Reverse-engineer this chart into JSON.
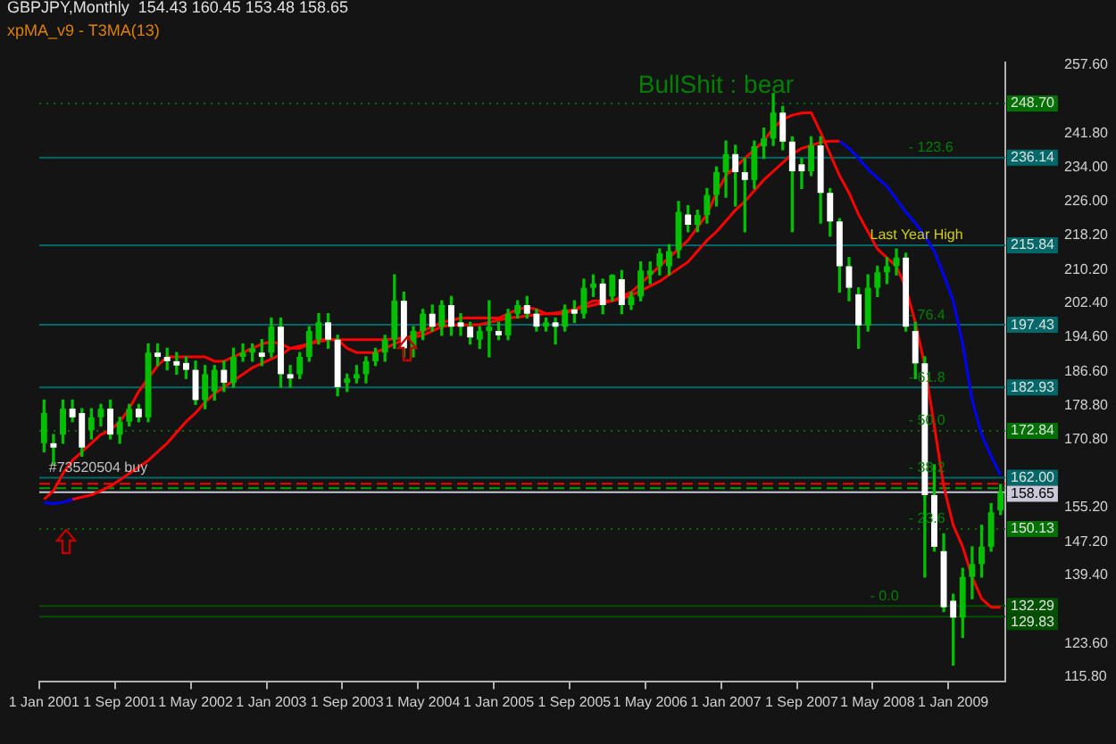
{
  "chart_data": {
    "type": "candlestick",
    "title": "GBPJPY,Monthly  154.43 160.45 153.48 158.65",
    "colors": [
      "#00c000",
      "#ffffff",
      "#00c000",
      "#ffffff",
      "#ffffff",
      "#00c000",
      "#00c000",
      "#ffffff",
      "#00c000",
      "#00c000",
      "#ffffff",
      "#00c000",
      "#ffffff",
      "#ffffff",
      "#ffffff",
      "#ffffff",
      "#ffffff",
      "#00c000",
      "#00c000",
      "#ffffff",
      "#00c000",
      "#00c000",
      "#00c000",
      "#ffffff",
      "#00c000",
      "#ffffff",
      "#ffffff",
      "#00c000",
      "#00c000",
      "#00c000",
      "#ffffff",
      "#ffffff",
      "#00c000",
      "#00c000",
      "#00c000",
      "#00c000",
      "#00c000",
      "#00c000",
      "#ffffff",
      "#00c000",
      "#00c000",
      "#ffffff",
      "#00c000",
      "#ffffff",
      "#ffffff",
      "#ffffff",
      "#00c000",
      "#00c000",
      "#ffffff",
      "#00c000",
      "#00c000",
      "#ffffff",
      "#ffffff",
      "#00c000",
      "#ffffff",
      "#00c000",
      "#ffffff",
      "#00c000",
      "#00c000",
      "#ffffff",
      "#00c000",
      "#ffffff",
      "#00c000",
      "#00c000",
      "#00c000",
      "#00c000",
      "#00c000",
      "#00c000",
      "#ffffff",
      "#00c000",
      "#00c000",
      "#00c000",
      "#00c000",
      "#ffffff",
      "#ffffff",
      "#00c000",
      "#00c000",
      "#00c000",
      "#ffffff",
      "#ffffff",
      "#ffffff",
      "#00c000",
      "#ffffff",
      "#ffffff",
      "#ffffff",
      "#ffffff",
      "#ffffff",
      "#00c000",
      "#00c000",
      "#00c000",
      "#00c000",
      "#ffffff",
      "#ffffff",
      "#ffffff",
      "#ffffff",
      "#ffffff",
      "#ffffff",
      "#00c000",
      "#00c000",
      "#00c000",
      "#00c000",
      "#00c000"
    ],
    "categories": [
      "1 Jan 2001",
      null,
      null,
      null,
      null,
      null,
      null,
      null,
      "1 Sep 2001",
      null,
      null,
      null,
      null,
      null,
      null,
      null,
      "1 May 2002",
      null,
      null,
      null,
      null,
      null,
      null,
      null,
      "1 Jan 2003",
      null,
      null,
      null,
      null,
      null,
      null,
      null,
      "1 Sep 2003",
      null,
      null,
      null,
      null,
      null,
      null,
      null,
      "1 May 2004",
      null,
      null,
      null,
      null,
      null,
      null,
      null,
      "1 Jan 2005",
      null,
      null,
      null,
      null,
      null,
      null,
      null,
      "1 Sep 2005",
      null,
      null,
      null,
      null,
      null,
      null,
      null,
      "1 May 2006",
      null,
      null,
      null,
      null,
      null,
      null,
      null,
      "1 Jan 2007",
      null,
      null,
      null,
      null,
      null,
      null,
      null,
      "1 Sep 2007",
      null,
      null,
      null,
      null,
      null,
      null,
      null,
      "1 May 2008",
      null,
      null,
      null,
      null,
      null,
      null,
      null,
      "1 Jan 2009",
      null,
      null,
      null,
      null,
      null
    ],
    "ohlc": [
      [
        170,
        180,
        168,
        177
      ],
      [
        170,
        172,
        165,
        169
      ],
      [
        172,
        180,
        170,
        178
      ],
      [
        178,
        180,
        175,
        176
      ],
      [
        177,
        178,
        167,
        169
      ],
      [
        173,
        178,
        171,
        176
      ],
      [
        176,
        179,
        174,
        178
      ],
      [
        178,
        180,
        171,
        172
      ],
      [
        172,
        176,
        170,
        175
      ],
      [
        175,
        179,
        174,
        178
      ],
      [
        178,
        179,
        175,
        176
      ],
      [
        176,
        193,
        175,
        191
      ],
      [
        191,
        193,
        188,
        190
      ],
      [
        190,
        192,
        187,
        189
      ],
      [
        189,
        191,
        186,
        188
      ],
      [
        188.6,
        190,
        185,
        187
      ],
      [
        187,
        189,
        179,
        180
      ],
      [
        180,
        188,
        178,
        186
      ],
      [
        182,
        188,
        180,
        187
      ],
      [
        187,
        189,
        182,
        184
      ],
      [
        184,
        192,
        183,
        190
      ],
      [
        190,
        193,
        189,
        191
      ],
      [
        191,
        193,
        189,
        192
      ],
      [
        191,
        194,
        188,
        190
      ],
      [
        191,
        199,
        190,
        197
      ],
      [
        197,
        199,
        183,
        186
      ],
      [
        186,
        188,
        183,
        185
      ],
      [
        186,
        191,
        185,
        190
      ],
      [
        190,
        197,
        189,
        196
      ],
      [
        194,
        200,
        193,
        198
      ],
      [
        198,
        200,
        192,
        194
      ],
      [
        194,
        195,
        181,
        183
      ],
      [
        184,
        186,
        182,
        185
      ],
      [
        185,
        188,
        184,
        186
      ],
      [
        186,
        190,
        184,
        189
      ],
      [
        189,
        192,
        188,
        191
      ],
      [
        191,
        195,
        189,
        194
      ],
      [
        194,
        209,
        192,
        203
      ],
      [
        203,
        205,
        190,
        192
      ],
      [
        192,
        197,
        190,
        196
      ],
      [
        196,
        201,
        194,
        200
      ],
      [
        200,
        202,
        196,
        197
      ],
      [
        197,
        203,
        195,
        202
      ],
      [
        202,
        204,
        195,
        197
      ],
      [
        198,
        200,
        195,
        197
      ],
      [
        197,
        198,
        193,
        194.5
      ],
      [
        194,
        197,
        192,
        196
      ],
      [
        196,
        203,
        190,
        197
      ],
      [
        196,
        198,
        194,
        195
      ],
      [
        195,
        201,
        194,
        200
      ],
      [
        200,
        203,
        199,
        202
      ],
      [
        202,
        204,
        199,
        200
      ],
      [
        200,
        201,
        196,
        197
      ],
      [
        197,
        199,
        196,
        198
      ],
      [
        198,
        199,
        193,
        197
      ],
      [
        197,
        202,
        196,
        201
      ],
      [
        201,
        203,
        198,
        200
      ],
      [
        200,
        208,
        199,
        206
      ],
      [
        206,
        209,
        204,
        207
      ],
      [
        207,
        208,
        200,
        202
      ],
      [
        204,
        209,
        203,
        209
      ],
      [
        208,
        210,
        200,
        202
      ],
      [
        202,
        205,
        201,
        204
      ],
      [
        204,
        212,
        203,
        210
      ],
      [
        209,
        212,
        207,
        210
      ],
      [
        211,
        215,
        209,
        214
      ],
      [
        211,
        216,
        209,
        214.5
      ],
      [
        214.7,
        226,
        213,
        223.6
      ],
      [
        223,
        225,
        219,
        220.6
      ],
      [
        220.6,
        224,
        219,
        222.9
      ],
      [
        222.9,
        229,
        221,
        227.5
      ],
      [
        227.5,
        234,
        225,
        232.8
      ],
      [
        232.8,
        240,
        227,
        237
      ],
      [
        237,
        239,
        225,
        232.8
      ],
      [
        232.8,
        236,
        219,
        231
      ],
      [
        231,
        240,
        229,
        238.8
      ],
      [
        238.8,
        243,
        236,
        240.6
      ],
      [
        240.6,
        251,
        239,
        246.6
      ],
      [
        246.6,
        248,
        238,
        239.9
      ],
      [
        239.9,
        241,
        219,
        233
      ],
      [
        234.6,
        236,
        229,
        233
      ],
      [
        233,
        241,
        232,
        239
      ],
      [
        239,
        241,
        221,
        228
      ],
      [
        228,
        229,
        218,
        221.4
      ],
      [
        221.4,
        222,
        205,
        211
      ],
      [
        211,
        213,
        203,
        206
      ],
      [
        204.5,
        206,
        192,
        197.3
      ],
      [
        197.3,
        209,
        196,
        206
      ],
      [
        206,
        211,
        204,
        209.6
      ],
      [
        209.6,
        213,
        207,
        211
      ],
      [
        211,
        215,
        209,
        213
      ],
      [
        213,
        214,
        196,
        197
      ],
      [
        196,
        198,
        185,
        188.5
      ],
      [
        188.5,
        190,
        139,
        158
      ],
      [
        158,
        165,
        145,
        146
      ],
      [
        145,
        149,
        131,
        132
      ],
      [
        133.5,
        135,
        118.6,
        129.6
      ],
      [
        129.6,
        141,
        125,
        139
      ],
      [
        139,
        146,
        134,
        142
      ],
      [
        142,
        151,
        139,
        146
      ],
      [
        146,
        156,
        145,
        154
      ],
      [
        154.43,
        160.45,
        153.48,
        158.65
      ]
    ],
    "series": [
      {
        "type": "line",
        "color": "#ff0000",
        "values": [
          157,
          159,
          163,
          166,
          168,
          170,
          172,
          173,
          175,
          178,
          182,
          185,
          188,
          190,
          190,
          190,
          190,
          190,
          189,
          189,
          190,
          191,
          192,
          193,
          193.5,
          193,
          192,
          192,
          193,
          194,
          194,
          194,
          192,
          191,
          191,
          191,
          192,
          193,
          194,
          195,
          196,
          197,
          198,
          198.5,
          199,
          199,
          199,
          199,
          199,
          200,
          201,
          201.5,
          201,
          200,
          200,
          200,
          201,
          202,
          203,
          203,
          203,
          204,
          205,
          207,
          209,
          211,
          213,
          215,
          217,
          220,
          223,
          228,
          232,
          234,
          236,
          238,
          240,
          243,
          245,
          246,
          246.5,
          246.6,
          242,
          237,
          232,
          228,
          223,
          219,
          215,
          213,
          211,
          206,
          198,
          188,
          174,
          160,
          151,
          146,
          139,
          134,
          132,
          132
        ]
      },
      {
        "type": "line",
        "color": "#ff0000",
        "values": [
          null,
          null,
          null,
          157,
          157.5,
          158,
          159,
          160,
          161.5,
          163,
          164.5,
          166,
          168,
          170,
          172.5,
          175,
          177,
          179.5,
          181.5,
          183,
          184.5,
          186,
          187.5,
          188.5,
          189.5,
          190.5,
          192,
          192.5,
          193,
          193.5,
          194,
          194,
          194,
          194,
          194,
          194,
          194,
          194.2,
          194.4,
          194.5,
          195,
          196,
          197,
          197.4,
          197.4,
          197.4,
          197.5,
          198,
          198.5,
          199,
          199.2,
          199.5,
          199.8,
          200,
          200.2,
          200.5,
          201,
          201.5,
          202,
          202.5,
          203,
          203.5,
          204.3,
          205.3,
          206.4,
          207.5,
          209,
          210.5,
          212,
          214.5,
          217,
          219,
          221.5,
          224,
          226,
          228.5,
          231,
          233,
          235,
          237,
          238.3,
          239,
          239.7,
          240,
          240,
          null,
          null,
          null,
          null,
          null,
          null,
          null,
          null,
          null,
          null,
          null,
          null,
          null,
          null,
          null,
          null,
          null
        ]
      },
      {
        "type": "line",
        "color": "#0000ff",
        "values": [
          156.2,
          156,
          156.3,
          157,
          null,
          null,
          null,
          null,
          null,
          null,
          null,
          null,
          null,
          null,
          null,
          null,
          null,
          null,
          null,
          null,
          null,
          null,
          null,
          null,
          null,
          null,
          null,
          null,
          null,
          null,
          null,
          null,
          null,
          null,
          null,
          null,
          null,
          null,
          null,
          null,
          null,
          null,
          null,
          null,
          null,
          null,
          null,
          null,
          null,
          null,
          null,
          null,
          null,
          null,
          null,
          null,
          null,
          null,
          null,
          null,
          null,
          null,
          null,
          null,
          null,
          null,
          null,
          null,
          null,
          null,
          null,
          null,
          null,
          null,
          null,
          null,
          null,
          null,
          null,
          null,
          null,
          null,
          null,
          null,
          240,
          238.3,
          236,
          233.5,
          231.5,
          229.5,
          226.5,
          223.5,
          221,
          218,
          214.5,
          209,
          203,
          193,
          180,
          172,
          167,
          162.6
        ]
      }
    ],
    "ylim": [
      114.7,
      258.3
    ],
    "yticks": [
      {
        "value": 257.6,
        "label": "257.60"
      },
      {
        "value": 241.8,
        "label": "241.80"
      },
      {
        "value": 234,
        "label": "234.00"
      },
      {
        "value": 226,
        "label": "226.00"
      },
      {
        "value": 218.2,
        "label": "218.20"
      },
      {
        "value": 210.2,
        "label": "210.20"
      },
      {
        "value": 202.4,
        "label": "202.40"
      },
      {
        "value": 194.6,
        "label": "194.60"
      },
      {
        "value": 186.6,
        "label": "186.60"
      },
      {
        "value": 178.8,
        "label": "178.80"
      },
      {
        "value": 170.8,
        "label": "170.80"
      },
      {
        "value": 155.2,
        "label": "155.20"
      },
      {
        "value": 147.2,
        "label": "147.20"
      },
      {
        "value": 139.4,
        "label": "139.40"
      },
      {
        "value": 123.6,
        "label": "123.60"
      },
      {
        "value": 115.8,
        "label": "115.80"
      }
    ],
    "ref_lines": [
      {
        "axis": "y",
        "value": 248.7,
        "label": "248.70",
        "color": "#007000",
        "line_style": "dotted"
      },
      {
        "axis": "y",
        "value": 236.14,
        "label": "236.14",
        "color": "#006868",
        "line_style": "solid"
      },
      {
        "axis": "y",
        "value": 215.84,
        "label": "215.84",
        "color": "#006868",
        "line_style": "solid"
      },
      {
        "axis": "y",
        "value": 197.43,
        "label": "197.43",
        "color": "#006868",
        "line_style": "solid"
      },
      {
        "axis": "y",
        "value": 182.93,
        "label": "182.93",
        "color": "#006868",
        "line_style": "solid"
      },
      {
        "axis": "y",
        "value": 172.84,
        "label": "172.84",
        "color": "#007000",
        "line_style": "dotted"
      },
      {
        "axis": "y",
        "value": 162,
        "label": "162.00",
        "color": "#006868",
        "line_style": "solid"
      },
      {
        "axis": "y",
        "value": 160.6,
        "color": "#ff0000",
        "line_style": "dashed"
      },
      {
        "axis": "y",
        "value": 159.6,
        "color": "#00a000",
        "line_style": "dashed"
      },
      {
        "axis": "y",
        "value": 158.65,
        "label": "158.65",
        "color": "#c8c8d8",
        "line_style": "solid"
      },
      {
        "axis": "y",
        "value": 150.13,
        "label": "150.13",
        "color": "#007000",
        "line_style": "dotted"
      },
      {
        "axis": "y",
        "value": 132.29,
        "label": "132.29",
        "color": "#005000",
        "line_style": "solid"
      },
      {
        "axis": "y",
        "value": 129.83,
        "label": "129.83",
        "color": "#005000",
        "line_style": "solid"
      }
    ],
    "annotations": [
      "xpMA_v9 - T3MA(13)",
      {
        "text": "BullShit : bear",
        "y": 249.2
      },
      {
        "text": "- 123.6",
        "y": 236.14
      },
      {
        "text": "Last Year High",
        "y": 215.84
      },
      {
        "text": "- 76.4",
        "y": 197.43
      },
      {
        "text": "- 61.8",
        "y": 182.93
      },
      {
        "text": "- 50.0",
        "y": 172.84
      },
      {
        "text": "- 38.2",
        "y": 162
      },
      {
        "text": "- 23.6",
        "y": 150.13
      },
      {
        "text": "- 0.0",
        "y": 132.29
      },
      {
        "text": "#73520504 buy",
        "y": 162
      }
    ],
    "legend": false,
    "grid": false
  }
}
